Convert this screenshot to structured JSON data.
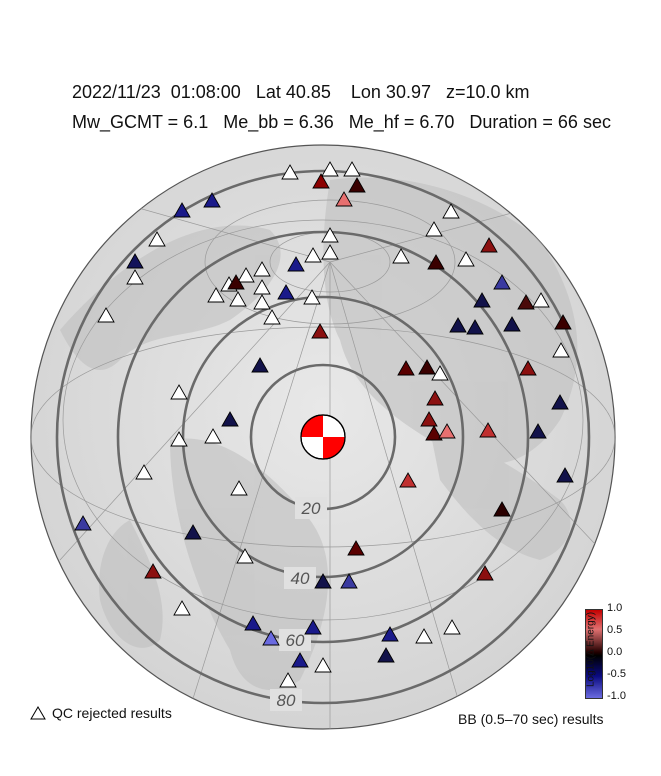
{
  "header": {
    "line1": "2022/11/23  01:08:00   Lat 40.85    Lon 30.97   z=10.0 km",
    "line2": "Mw_GCMT = 6.1   Me_bb = 6.36   Me_hf = 6.70   Duration = 66 sec"
  },
  "distance_labels": [
    "20",
    "40",
    "60",
    "80"
  ],
  "legend": {
    "qc_label": "QC rejected results",
    "bb_label": "BB (0.5–70 sec) results"
  },
  "colorbar": {
    "title": "Log10(Δ Energy)",
    "ticks": [
      "1.0",
      "0.5",
      "0.0",
      "-0.5",
      "-1.0"
    ],
    "high_color": "#c40000",
    "mid_color": "#000000",
    "low_color": "#6a6ae0"
  },
  "colors": {
    "ring": "#666666",
    "qc_rejected": "#ffffff",
    "beachball": "#ff0000"
  }
}
